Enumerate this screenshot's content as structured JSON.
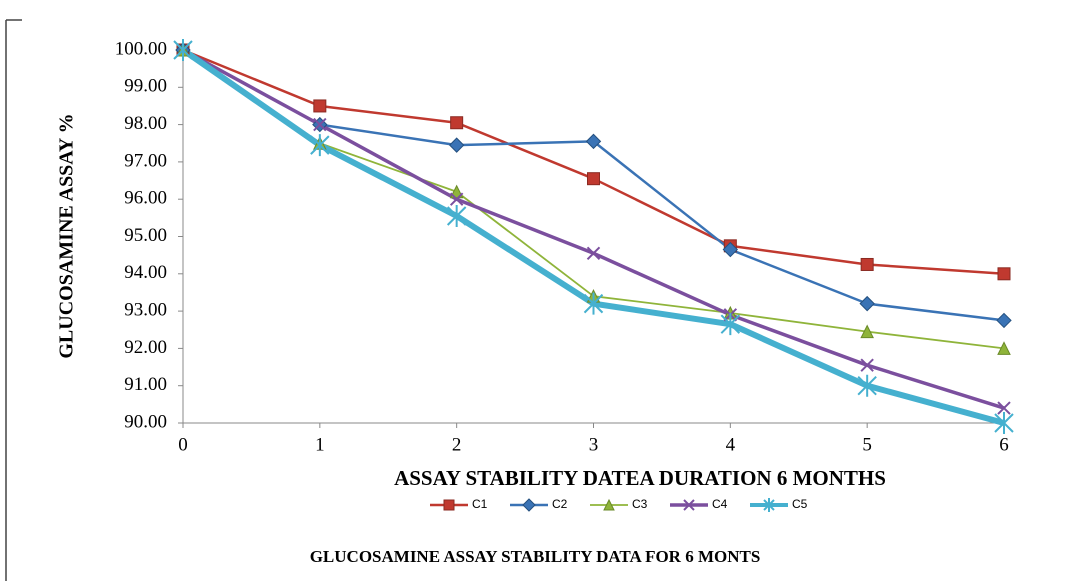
{
  "chart_data": {
    "type": "line",
    "y_label": "GLUCOSAMINE ASSAY %",
    "x_label": "ASSAY STABILITY DATEA DURATION  6 MONTHS",
    "caption": "GLUCOSAMINE ASSAY STABILITY DATA FOR 6 MONTS",
    "x": [
      0,
      1,
      2,
      3,
      4,
      5,
      6
    ],
    "xlim": [
      0,
      6
    ],
    "xticks": [
      0,
      1,
      2,
      3,
      4,
      5,
      6
    ],
    "ylim": [
      90,
      100
    ],
    "yticks": [
      {
        "value": 90,
        "label": "90.00"
      },
      {
        "value": 91,
        "label": "91.00"
      },
      {
        "value": 92,
        "label": "92.00"
      },
      {
        "value": 93,
        "label": "93.00"
      },
      {
        "value": 94,
        "label": "94.00"
      },
      {
        "value": 95,
        "label": "95.00"
      },
      {
        "value": 96,
        "label": "96.00"
      },
      {
        "value": 97,
        "label": "97.00"
      },
      {
        "value": 98,
        "label": "98.00"
      },
      {
        "value": 99,
        "label": "99.00"
      },
      {
        "value": 100,
        "label": "100.00"
      }
    ],
    "legend": "bottom",
    "series": [
      {
        "name": "C1",
        "color": "#c0392f",
        "marker": "square",
        "values": [
          100,
          98.5,
          98.05,
          96.55,
          94.75,
          94.25,
          94.0
        ]
      },
      {
        "name": "C2",
        "color": "#3a73b5",
        "marker": "diamond",
        "values": [
          100,
          98.0,
          97.45,
          97.55,
          94.65,
          93.2,
          92.75
        ]
      },
      {
        "name": "C3",
        "color": "#8fb43a",
        "marker": "triangle",
        "values": [
          100,
          97.5,
          96.2,
          93.4,
          92.95,
          92.45,
          92.0
        ]
      },
      {
        "name": "C4",
        "color": "#7b4f9e",
        "marker": "x",
        "values": [
          100,
          98.0,
          96.0,
          94.55,
          92.9,
          91.55,
          90.4
        ]
      },
      {
        "name": "C5",
        "color": "#45b0cf",
        "marker": "star",
        "values": [
          100,
          97.45,
          95.55,
          93.2,
          92.65,
          91.0,
          90.0
        ]
      }
    ]
  }
}
